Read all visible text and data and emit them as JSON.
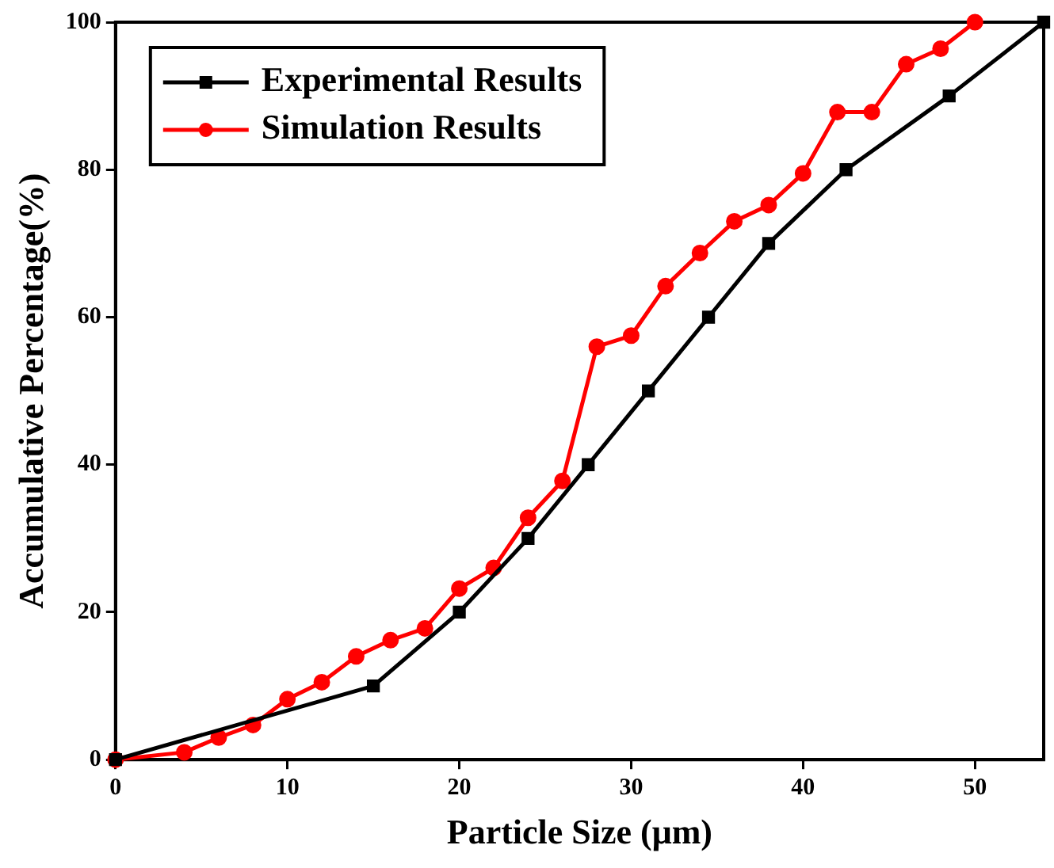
{
  "chart_data": {
    "type": "line",
    "xlabel": "Particle Size (μm)",
    "ylabel": "Accumulative Percentage(%)",
    "xlim": [
      0,
      54
    ],
    "xticks": [
      0,
      10,
      20,
      30,
      40,
      50
    ],
    "ylim": [
      0,
      100
    ],
    "yticks": [
      0,
      20,
      40,
      60,
      80,
      100
    ],
    "grid": false,
    "legend": "top left",
    "series": [
      {
        "name": "Experimental Results",
        "color": "#000000",
        "marker": "square",
        "x": [
          0,
          15,
          20,
          24,
          27.5,
          31,
          34.5,
          38,
          42.5,
          48.5,
          54
        ],
        "values": [
          0,
          10,
          20,
          30,
          40,
          50,
          60,
          70,
          80,
          90,
          100
        ]
      },
      {
        "name": "Simulation Results",
        "color": "#ff0000",
        "marker": "circle",
        "x": [
          0,
          4,
          6,
          8,
          10,
          12,
          14,
          16,
          18,
          20,
          22,
          24,
          26,
          28,
          30,
          32,
          34,
          36,
          38,
          40,
          42,
          44,
          46,
          48,
          50
        ],
        "values": [
          0,
          1,
          3,
          4.7,
          8.2,
          10.5,
          14,
          16.2,
          17.8,
          23.2,
          26,
          32.8,
          37.8,
          56,
          57.5,
          64.2,
          68.7,
          73,
          75.2,
          79.5,
          87.8,
          87.8,
          94.3,
          96.4,
          100
        ]
      }
    ]
  }
}
